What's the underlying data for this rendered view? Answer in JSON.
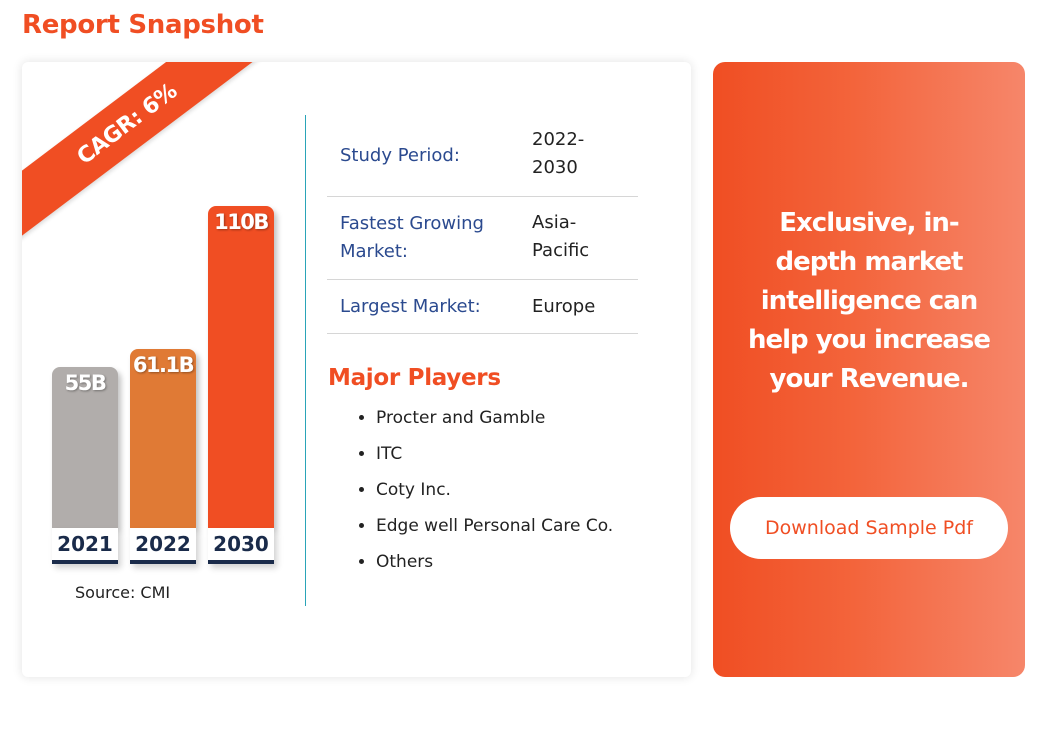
{
  "page_title": "Report Snapshot",
  "snapshot": {
    "cagr_label": "CAGR: 6%",
    "source": "Source: CMI"
  },
  "chart_data": {
    "type": "bar",
    "categories": [
      "2021",
      "2022",
      "2030"
    ],
    "values": [
      55,
      61.1,
      110
    ],
    "data_labels": [
      "55B",
      "61.1B",
      "110B"
    ],
    "colors": [
      "#b1adab",
      "#e07a35",
      "#f04e23"
    ],
    "title": "",
    "xlabel": "",
    "ylabel": ""
  },
  "info_rows": [
    {
      "label": "Study Period:",
      "value": "2022-2030"
    },
    {
      "label": "Fastest Growing Market:",
      "value": "Asia-Pacific"
    },
    {
      "label": "Largest Market:",
      "value": "Europe"
    }
  ],
  "major_players": {
    "title": "Major Players",
    "items": [
      "Procter and Gamble",
      "ITC",
      "Coty Inc.",
      "Edge well Personal Care Co.",
      "Others"
    ]
  },
  "promo": {
    "text": "Exclusive, in-depth market intelligence can help you increase your Revenue.",
    "button_label": "Download Sample Pdf"
  },
  "colors": {
    "accent": "#f04e23",
    "navy": "#1a2b4a",
    "label_blue": "#2b4a8f",
    "divider_teal": "#2aa4b8"
  }
}
